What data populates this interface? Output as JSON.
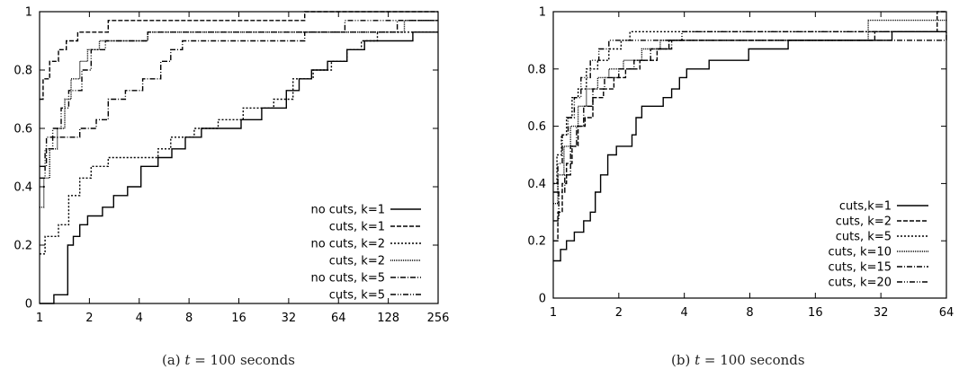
{
  "figure": {
    "captions": [
      {
        "prefix": "(a) ",
        "variable": "t",
        "rest": " = 100 seconds"
      },
      {
        "prefix": "(b) ",
        "variable": "t",
        "rest": " = 100 seconds"
      }
    ]
  },
  "chart_data": [
    {
      "type": "line",
      "step": true,
      "x_scale": "log2",
      "xlim": [
        1,
        256
      ],
      "ylim": [
        0,
        1
      ],
      "x_ticks": [
        1,
        2,
        4,
        8,
        16,
        32,
        64,
        128,
        256
      ],
      "y_ticks": [
        0,
        0.2,
        0.4,
        0.6,
        0.8,
        1
      ],
      "legend_position": "bottom-right",
      "series": [
        {
          "name": "no cuts, k=1",
          "dash": "solid",
          "points": [
            [
              1,
              0
            ],
            [
              1.22,
              0.03
            ],
            [
              1.48,
              0.2
            ],
            [
              1.6,
              0.23
            ],
            [
              1.75,
              0.27
            ],
            [
              1.95,
              0.3
            ],
            [
              2.4,
              0.33
            ],
            [
              2.8,
              0.37
            ],
            [
              3.4,
              0.4
            ],
            [
              4.1,
              0.47
            ],
            [
              5.2,
              0.5
            ],
            [
              6.3,
              0.53
            ],
            [
              7.6,
              0.57
            ],
            [
              9.5,
              0.6
            ],
            [
              12,
              0.6
            ],
            [
              16.5,
              0.63
            ],
            [
              22,
              0.67
            ],
            [
              31,
              0.73
            ],
            [
              37,
              0.77
            ],
            [
              44,
              0.8
            ],
            [
              55,
              0.83
            ],
            [
              72,
              0.87
            ],
            [
              92,
              0.9
            ],
            [
              125,
              0.9
            ],
            [
              180,
              0.93
            ],
            [
              256,
              0.93
            ]
          ]
        },
        {
          "name": "cuts, k=1",
          "dash": "dash",
          "points": [
            [
              1,
              0.7
            ],
            [
              1.05,
              0.77
            ],
            [
              1.15,
              0.83
            ],
            [
              1.3,
              0.87
            ],
            [
              1.45,
              0.9
            ],
            [
              1.7,
              0.93
            ],
            [
              2.15,
              0.93
            ],
            [
              2.6,
              0.97
            ],
            [
              4.4,
              0.97
            ],
            [
              16,
              0.97
            ],
            [
              30,
              0.97
            ],
            [
              40,
              1
            ],
            [
              256,
              1
            ]
          ]
        },
        {
          "name": "no cuts, k=2",
          "dash": "dot",
          "points": [
            [
              1,
              0.17
            ],
            [
              1.08,
              0.23
            ],
            [
              1.3,
              0.27
            ],
            [
              1.5,
              0.37
            ],
            [
              1.75,
              0.43
            ],
            [
              2.05,
              0.47
            ],
            [
              2.6,
              0.5
            ],
            [
              4.3,
              0.5
            ],
            [
              5.2,
              0.53
            ],
            [
              6.2,
              0.57
            ],
            [
              8.6,
              0.6
            ],
            [
              12,
              0.63
            ],
            [
              17,
              0.67
            ],
            [
              26,
              0.7
            ],
            [
              34,
              0.77
            ],
            [
              45,
              0.8
            ],
            [
              58,
              0.83
            ],
            [
              72,
              0.87
            ],
            [
              88,
              0.9
            ],
            [
              110,
              0.93
            ],
            [
              256,
              0.93
            ]
          ]
        },
        {
          "name": "cuts, k=2",
          "dash": "densedot",
          "points": [
            [
              1,
              0.33
            ],
            [
              1.06,
              0.43
            ],
            [
              1.15,
              0.53
            ],
            [
              1.28,
              0.6
            ],
            [
              1.42,
              0.7
            ],
            [
              1.55,
              0.77
            ],
            [
              1.75,
              0.83
            ],
            [
              1.95,
              0.87
            ],
            [
              2.3,
              0.9
            ],
            [
              3.7,
              0.9
            ],
            [
              4.5,
              0.93
            ],
            [
              9,
              0.93
            ],
            [
              20,
              0.93
            ],
            [
              60,
              0.93
            ],
            [
              160,
              0.97
            ],
            [
              256,
              0.97
            ]
          ]
        },
        {
          "name": "no cuts, k=5",
          "dash": "dashdot",
          "points": [
            [
              1,
              0.47
            ],
            [
              1.1,
              0.57
            ],
            [
              1.6,
              0.57
            ],
            [
              1.75,
              0.6
            ],
            [
              2.2,
              0.63
            ],
            [
              2.6,
              0.7
            ],
            [
              3.3,
              0.73
            ],
            [
              4.2,
              0.77
            ],
            [
              5.4,
              0.83
            ],
            [
              6.2,
              0.87
            ],
            [
              7.3,
              0.9
            ],
            [
              22,
              0.9
            ],
            [
              40,
              0.93
            ],
            [
              145,
              0.97
            ],
            [
              256,
              0.97
            ]
          ]
        },
        {
          "name": "cuts, k=5",
          "dash": "dashdotdot",
          "points": [
            [
              1,
              0.43
            ],
            [
              1.08,
              0.53
            ],
            [
              1.2,
              0.6
            ],
            [
              1.35,
              0.67
            ],
            [
              1.5,
              0.73
            ],
            [
              1.8,
              0.8
            ],
            [
              2.05,
              0.87
            ],
            [
              2.5,
              0.9
            ],
            [
              3.6,
              0.9
            ],
            [
              4.5,
              0.93
            ],
            [
              11,
              0.93
            ],
            [
              30,
              0.93
            ],
            [
              70,
              0.97
            ],
            [
              256,
              0.97
            ]
          ]
        }
      ]
    },
    {
      "type": "line",
      "step": true,
      "x_scale": "log2",
      "xlim": [
        1,
        64
      ],
      "ylim": [
        0,
        1
      ],
      "x_ticks": [
        1,
        2,
        4,
        8,
        16,
        32,
        64
      ],
      "y_ticks": [
        0,
        0.2,
        0.4,
        0.6,
        0.8,
        1
      ],
      "legend_position": "bottom-right",
      "series": [
        {
          "name": "cuts,k=1",
          "dash": "solid",
          "points": [
            [
              1,
              0.13
            ],
            [
              1.08,
              0.17
            ],
            [
              1.15,
              0.2
            ],
            [
              1.25,
              0.23
            ],
            [
              1.38,
              0.27
            ],
            [
              1.48,
              0.3
            ],
            [
              1.56,
              0.37
            ],
            [
              1.65,
              0.43
            ],
            [
              1.78,
              0.5
            ],
            [
              1.95,
              0.53
            ],
            [
              2.3,
              0.57
            ],
            [
              2.4,
              0.63
            ],
            [
              2.55,
              0.67
            ],
            [
              3.2,
              0.7
            ],
            [
              3.5,
              0.73
            ],
            [
              3.8,
              0.77
            ],
            [
              4.1,
              0.8
            ],
            [
              5.2,
              0.83
            ],
            [
              7.9,
              0.87
            ],
            [
              12,
              0.9
            ],
            [
              36,
              0.93
            ],
            [
              64,
              0.93
            ]
          ]
        },
        {
          "name": "cuts, k=2",
          "dash": "dash",
          "points": [
            [
              1,
              0.2
            ],
            [
              1.05,
              0.3
            ],
            [
              1.1,
              0.4
            ],
            [
              1.15,
              0.47
            ],
            [
              1.22,
              0.53
            ],
            [
              1.3,
              0.6
            ],
            [
              1.4,
              0.63
            ],
            [
              1.52,
              0.7
            ],
            [
              1.7,
              0.73
            ],
            [
              1.9,
              0.77
            ],
            [
              2.15,
              0.8
            ],
            [
              2.5,
              0.83
            ],
            [
              3.0,
              0.87
            ],
            [
              3.4,
              0.9
            ],
            [
              7.5,
              0.9
            ],
            [
              30,
              0.93
            ],
            [
              58,
              1
            ],
            [
              64,
              1
            ]
          ]
        },
        {
          "name": "cuts, k=5",
          "dash": "dot",
          "points": [
            [
              1,
              0.4
            ],
            [
              1.04,
              0.5
            ],
            [
              1.09,
              0.57
            ],
            [
              1.15,
              0.63
            ],
            [
              1.22,
              0.7
            ],
            [
              1.3,
              0.73
            ],
            [
              1.42,
              0.8
            ],
            [
              1.6,
              0.83
            ],
            [
              1.8,
              0.87
            ],
            [
              2.05,
              0.9
            ],
            [
              2.25,
              0.93
            ],
            [
              32,
              0.93
            ],
            [
              64,
              0.93
            ]
          ]
        },
        {
          "name": "cuts, k=10",
          "dash": "densedot",
          "points": [
            [
              1,
              0.33
            ],
            [
              1.05,
              0.43
            ],
            [
              1.12,
              0.53
            ],
            [
              1.2,
              0.6
            ],
            [
              1.3,
              0.67
            ],
            [
              1.42,
              0.73
            ],
            [
              1.6,
              0.77
            ],
            [
              1.8,
              0.8
            ],
            [
              2.1,
              0.83
            ],
            [
              2.55,
              0.87
            ],
            [
              3.1,
              0.9
            ],
            [
              9,
              0.9
            ],
            [
              28,
              0.97
            ],
            [
              64,
              0.97
            ]
          ]
        },
        {
          "name": "cuts, k=15",
          "dash": "dashdot",
          "points": [
            [
              1,
              0.27
            ],
            [
              1.06,
              0.37
            ],
            [
              1.13,
              0.43
            ],
            [
              1.2,
              0.53
            ],
            [
              1.28,
              0.6
            ],
            [
              1.38,
              0.67
            ],
            [
              1.52,
              0.73
            ],
            [
              1.72,
              0.77
            ],
            [
              2.0,
              0.8
            ],
            [
              2.35,
              0.83
            ],
            [
              2.8,
              0.87
            ],
            [
              3.5,
              0.9
            ],
            [
              9,
              0.9
            ],
            [
              64,
              0.93
            ]
          ]
        },
        {
          "name": "cuts, k=20",
          "dash": "dashdotdot",
          "points": [
            [
              1,
              0.37
            ],
            [
              1.05,
              0.47
            ],
            [
              1.1,
              0.57
            ],
            [
              1.17,
              0.63
            ],
            [
              1.25,
              0.7
            ],
            [
              1.34,
              0.77
            ],
            [
              1.48,
              0.83
            ],
            [
              1.62,
              0.87
            ],
            [
              1.8,
              0.9
            ],
            [
              3.6,
              0.9
            ],
            [
              3.9,
              0.93
            ],
            [
              26,
              0.93
            ],
            [
              64,
              0.93
            ]
          ]
        }
      ]
    }
  ]
}
